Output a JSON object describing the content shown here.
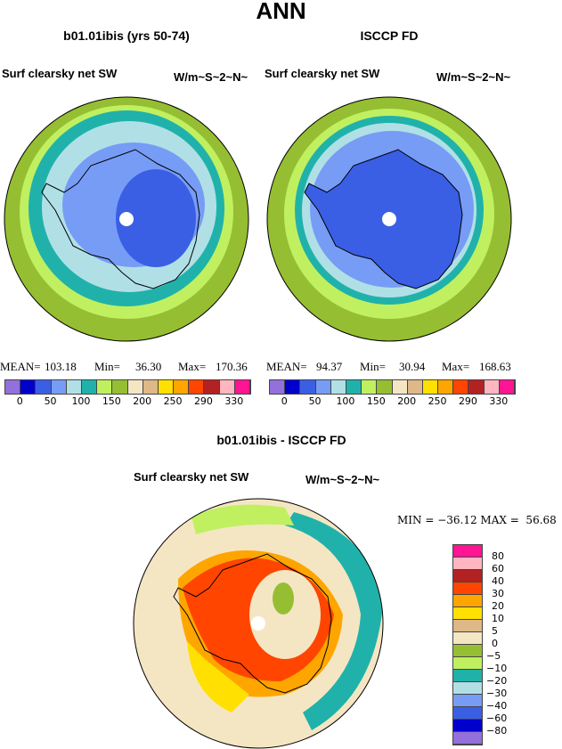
{
  "title": "ANN",
  "palette_colors": [
    "#9370DB",
    "#0000CD",
    "#3A5FE5",
    "#779CF5",
    "#B0E0E6",
    "#20B2AA",
    "#C0F060",
    "#96BE32",
    "#F5E6C3",
    "#DEB887",
    "#FFE000",
    "#FFA500",
    "#FF4500",
    "#B22222",
    "#FFB6C1",
    "#FF1493"
  ],
  "chart_data": [
    {
      "type": "heatmap",
      "title": "b01.01ibis (yrs 50-74)",
      "variable": "Surf clearsky net SW",
      "units": "W/m~S~2~N~",
      "stats": {
        "mean_label": "MEAN=",
        "mean": "103.18",
        "min_label": "Min=",
        "min": "36.30",
        "max_label": "Max=",
        "max": "170.36"
      },
      "colorbar_labels": [
        "0",
        "50",
        "100",
        "150",
        "200",
        "250",
        "290",
        "330"
      ]
    },
    {
      "type": "heatmap",
      "title": "ISCCP FD",
      "variable": "Surf clearsky net SW",
      "units": "W/m~S~2~N~",
      "stats": {
        "mean_label": "MEAN=",
        "mean": "94.37",
        "min_label": "Min=",
        "min": "30.94",
        "max_label": "Max=",
        "max": "168.63"
      },
      "colorbar_labels": [
        "0",
        "50",
        "100",
        "150",
        "200",
        "250",
        "290",
        "330"
      ]
    },
    {
      "type": "heatmap",
      "title": "b01.01ibis - ISCCP FD",
      "variable": "Surf clearsky net SW",
      "units": "W/m~S~2~N~",
      "stats": {
        "text": "MIN = −36.12 MAX =  56.68"
      },
      "colorbar_labels": [
        "80",
        "60",
        "40",
        "30",
        "20",
        "10",
        "5",
        "0",
        "−5",
        "−10",
        "−20",
        "−30",
        "−40",
        "−60",
        "−80"
      ]
    }
  ]
}
